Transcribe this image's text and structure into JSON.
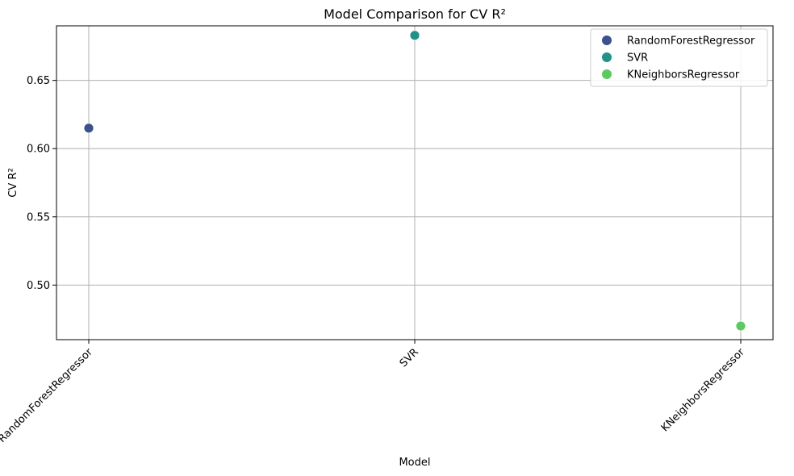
{
  "chart_data": {
    "type": "scatter",
    "title": "Model Comparison for CV R²",
    "xlabel": "Model",
    "ylabel": "CV R²",
    "categories": [
      "RandomForestRegressor",
      "SVR",
      "KNeighborsRegressor"
    ],
    "series": [
      {
        "name": "RandomForestRegressor",
        "category": "RandomForestRegressor",
        "value": 0.615,
        "color": "#3b528b"
      },
      {
        "name": "SVR",
        "category": "SVR",
        "value": 0.683,
        "color": "#21918c"
      },
      {
        "name": "KNeighborsRegressor",
        "category": "KNeighborsRegressor",
        "value": 0.47,
        "color": "#5ec962"
      }
    ],
    "ylim": [
      0.46,
      0.69
    ],
    "yticks": [
      0.5,
      0.55,
      0.6,
      0.65
    ],
    "ytick_labels": [
      "0.50",
      "0.55",
      "0.60",
      "0.65"
    ],
    "grid": true,
    "legend_position": "top-right"
  }
}
